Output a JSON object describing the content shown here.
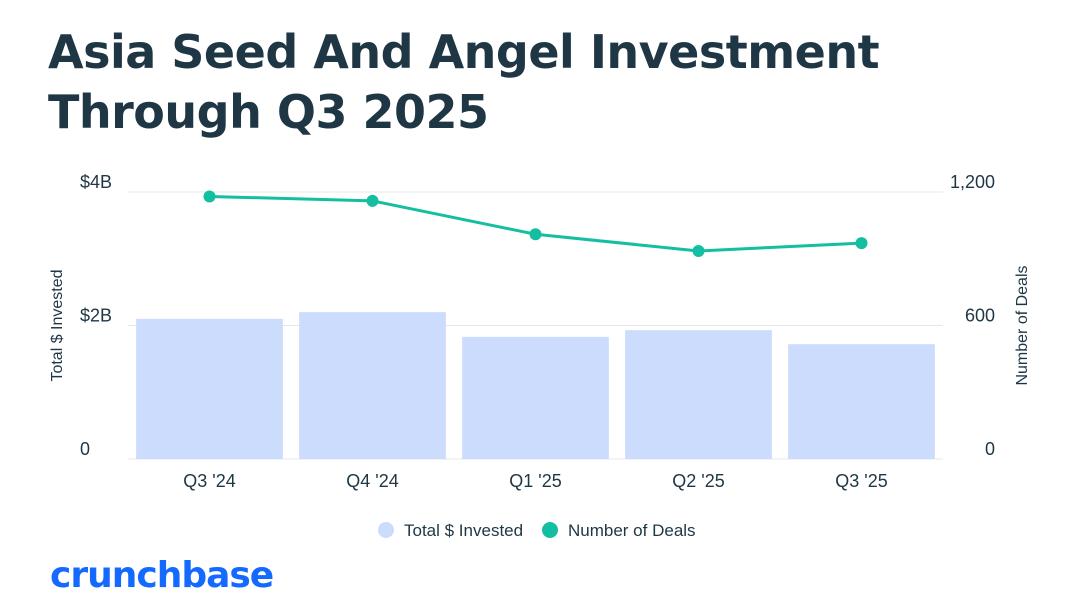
{
  "header": {
    "title": "Asia Seed And Angel Investment Through Q3 2025"
  },
  "chart_data": {
    "type": "bar",
    "title": "Asia Seed And Angel Investment Through Q3 2025",
    "categories": [
      "Q3 '24",
      "Q4 '24",
      "Q1 '25",
      "Q2 '25",
      "Q3 '25"
    ],
    "series": [
      {
        "name": "Total $ Invested",
        "type": "bar",
        "axis": "left",
        "color": "#ccdcfd",
        "values": [
          2.1,
          2.2,
          1.83,
          1.93,
          1.72
        ]
      },
      {
        "name": "Number of Deals",
        "type": "line",
        "axis": "right",
        "color": "#14bfa1",
        "values": [
          1180,
          1160,
          1010,
          935,
          970
        ]
      }
    ],
    "y_left": {
      "label": "Total $ Invested",
      "unit": "billion USD",
      "min": 0,
      "max": 4,
      "ticks": [
        0,
        2,
        4
      ],
      "tick_labels": [
        "0",
        "$2B",
        "$4B"
      ]
    },
    "y_right": {
      "label": "Number of Deals",
      "min": 0,
      "max": 1200,
      "ticks": [
        0,
        600,
        1200
      ],
      "tick_labels": [
        "0",
        "600",
        "1,200"
      ]
    },
    "grid": true,
    "legend_position": "bottom-center"
  },
  "legend": {
    "items": [
      "Total $ Invested",
      "Number of Deals"
    ]
  },
  "footer": {
    "logo_text": "crunchbase"
  }
}
